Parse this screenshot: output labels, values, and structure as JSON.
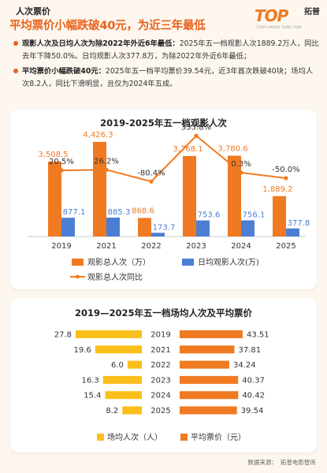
{
  "header": {
    "kicker": "人次票价",
    "headline": "平均票价小幅跌破40元，为近三年最低"
  },
  "logo": {
    "mark": "TOP",
    "sub": "TUOPU MOVIE THINK TANK",
    "cn": "拓普"
  },
  "bullets": [
    {
      "lead": "观影人次及日均人次为除2022年外近6年最低：",
      "text": "2025年五一档观影人次1889.2万人，同比去年下降50.0%。日均观影人次377.8万，为除2022年外近6年最低；"
    },
    {
      "lead": "平均票价小幅跌破40元：",
      "text": "2025年五一档平均票价39.54元，近3年首次跌破40块；场均人次8.2人，同比下滑明显，且仅为2024年五成。"
    }
  ],
  "chart_data": [
    {
      "type": "bar",
      "title": "2019-2025年五一档观影人次",
      "categories": [
        "2019",
        "2021",
        "2022",
        "2023",
        "2024",
        "2025"
      ],
      "series": [
        {
          "name": "观影总人次（万）",
          "values": [
            3508.5,
            4426.3,
            868.6,
            3768.1,
            3780.6,
            1889.2
          ],
          "color": "#f07a22"
        },
        {
          "name": "日均观影人次(万)",
          "values": [
            877.1,
            885.3,
            173.7,
            753.6,
            756.1,
            377.8
          ],
          "color": "#4c7fd4"
        }
      ],
      "line_series": {
        "name": "观影总人次同比",
        "labels": [
          "20.5%",
          "26.2%",
          "-80.4%",
          "333.8%",
          "0.3%",
          "-50.0%"
        ],
        "values": [
          20.5,
          26.2,
          -80.4,
          333.8,
          0.3,
          -50.0
        ],
        "color": "#f07a22"
      },
      "value_labels": [
        [
          "3,508.5",
          "4,426.3",
          "868.6",
          "3,768.1",
          "3,780.6",
          "1,889.2"
        ],
        [
          "877.1",
          "885.3",
          "173.7",
          "753.6",
          "756.1",
          "377.8"
        ]
      ],
      "legend": "bottom"
    },
    {
      "type": "bar",
      "orientation": "horizontal-butterfly",
      "title": "2019—2025年五一档场均人次及平均票价",
      "categories": [
        "2019",
        "2021",
        "2022",
        "2023",
        "2024",
        "2025"
      ],
      "series": [
        {
          "name": "场均人次（人）",
          "values": [
            27.8,
            19.6,
            6.0,
            16.3,
            15.4,
            8.2
          ],
          "color": "#fbbf1c"
        },
        {
          "name": "平均票价（元）",
          "values": [
            43.51,
            37.81,
            34.24,
            40.37,
            40.42,
            39.54
          ],
          "color": "#f07a22"
        }
      ],
      "legend": "bottom"
    }
  ],
  "source": {
    "label": "数据来源：",
    "name": "拓普电影智库"
  }
}
